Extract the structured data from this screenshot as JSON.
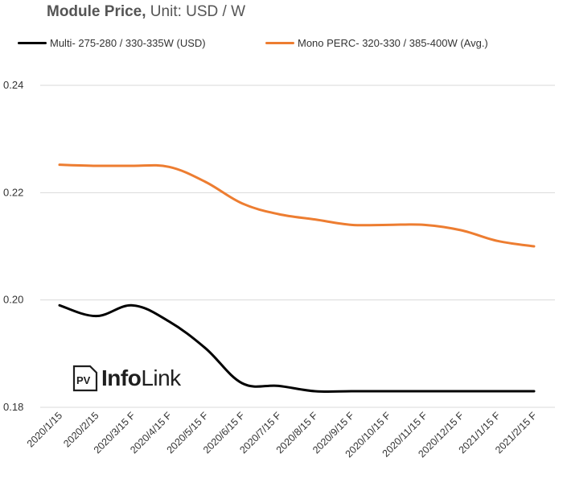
{
  "title": {
    "bold": "Module Price,",
    "rest": " Unit: USD / W"
  },
  "logo": {
    "badge": "PV",
    "text_bold": "Info",
    "text_rest": "Link"
  },
  "chart_data": {
    "type": "line",
    "categories": [
      "2020/1/15",
      "2020/2/15",
      "2020/3/15 F",
      "2020/4/15 F",
      "2020/5/15 F",
      "2020/6/15 F",
      "2020/7/15 F",
      "2020/8/15 F",
      "2020/9/15 F",
      "2020/10/15 F",
      "2020/11/15 F",
      "2020/12/15 F",
      "2021/1/15 F",
      "2021/2/15 F"
    ],
    "series": [
      {
        "name": "Multi- 275-280 / 330-335W (USD)",
        "color": "#000000",
        "values": [
          0.199,
          0.197,
          0.199,
          0.196,
          0.191,
          0.1845,
          0.184,
          0.183,
          0.183,
          0.183,
          0.183,
          0.183,
          0.183,
          0.183
        ]
      },
      {
        "name": "Mono PERC- 320-330 / 385-400W (Avg.)",
        "color": "#ED7D31",
        "values": [
          0.2252,
          0.225,
          0.225,
          0.2248,
          0.222,
          0.218,
          0.216,
          0.215,
          0.214,
          0.214,
          0.214,
          0.213,
          0.211,
          0.21
        ]
      }
    ],
    "yticks": [
      "0.18",
      "0.20",
      "0.22",
      "0.24"
    ],
    "ylim": [
      0.18,
      0.24
    ],
    "grid": true,
    "legend_position": "top",
    "smooth": true
  }
}
